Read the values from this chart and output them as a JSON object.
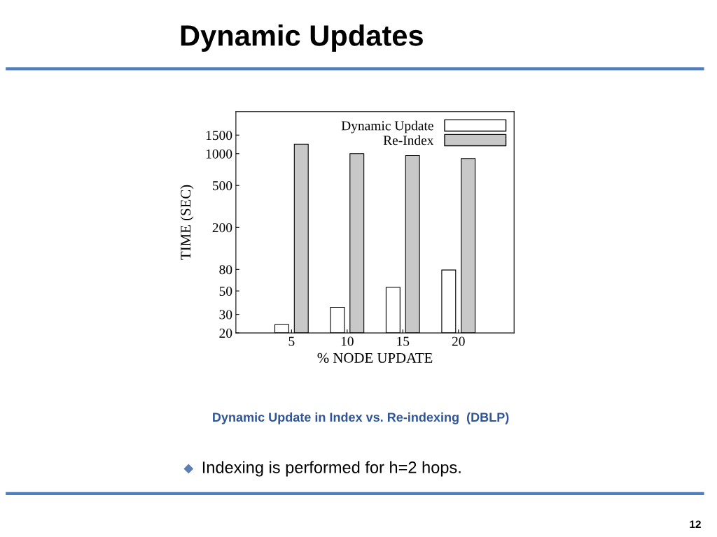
{
  "chart_data": {
    "type": "bar",
    "title": "Dynamic Updates",
    "xlabel": "% NODE UPDATE",
    "ylabel": "TIME (SEC)",
    "categories": [
      "5",
      "10",
      "15",
      "20"
    ],
    "series": [
      {
        "name": "Dynamic Update",
        "color": "#ffffff",
        "values": [
          24,
          35,
          54,
          79
        ]
      },
      {
        "name": "Re-Index",
        "color": "#c8c8c8",
        "values": [
          1230,
          1000,
          960,
          900
        ]
      }
    ],
    "log": true,
    "ylim": [
      20,
      2500
    ],
    "yticks": [
      20,
      30,
      50,
      80,
      200,
      500,
      1000,
      1500
    ],
    "grid": false,
    "legend": "top right",
    "annotations": [
      "Dynamic Update in Index vs. Re-indexing  (DBLP)",
      "Indexing is performed for h=2 hops.",
      "12"
    ]
  }
}
